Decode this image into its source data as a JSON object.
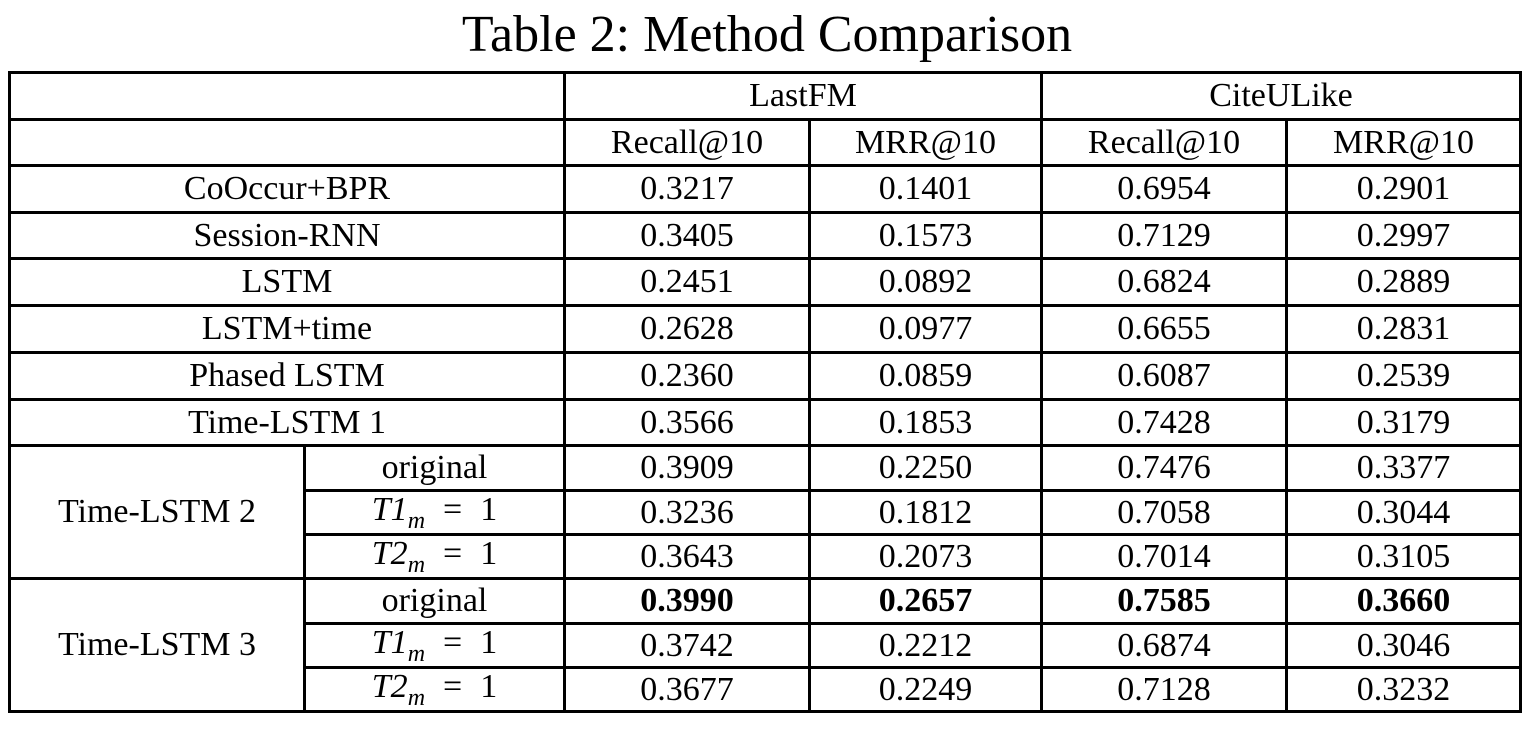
{
  "title": "Table 2: Method Comparison",
  "datasets": [
    "LastFM",
    "CiteULike"
  ],
  "metrics": [
    "Recall@10",
    "MRR@10",
    "Recall@10",
    "MRR@10"
  ],
  "rows": [
    {
      "method": "CoOccur+BPR",
      "values": [
        "0.3217",
        "0.1401",
        "0.6954",
        "0.2901"
      ]
    },
    {
      "method": "Session-RNN",
      "values": [
        "0.3405",
        "0.1573",
        "0.7129",
        "0.2997"
      ]
    },
    {
      "method": "LSTM",
      "values": [
        "0.2451",
        "0.0892",
        "0.6824",
        "0.2889"
      ]
    },
    {
      "method": "LSTM+time",
      "values": [
        "0.2628",
        "0.0977",
        "0.6655",
        "0.2831"
      ]
    },
    {
      "method": "Phased LSTM",
      "values": [
        "0.2360",
        "0.0859",
        "0.6087",
        "0.2539"
      ]
    },
    {
      "method": "Time-LSTM 1",
      "values": [
        "0.3566",
        "0.1853",
        "0.7428",
        "0.3179"
      ]
    }
  ],
  "groups": [
    {
      "method": "Time-LSTM 2",
      "variants": [
        {
          "label": "original",
          "values": [
            "0.3909",
            "0.2250",
            "0.7476",
            "0.3377"
          ]
        },
        {
          "var": "T1",
          "sub": "m",
          "eq": "=",
          "rhs": "1",
          "values": [
            "0.3236",
            "0.1812",
            "0.7058",
            "0.3044"
          ]
        },
        {
          "var": "T2",
          "sub": "m",
          "eq": "=",
          "rhs": "1",
          "values": [
            "0.3643",
            "0.2073",
            "0.7014",
            "0.3105"
          ]
        }
      ]
    },
    {
      "method": "Time-LSTM 3",
      "variants": [
        {
          "label": "original",
          "values": [
            "0.3990",
            "0.2657",
            "0.7585",
            "0.3660"
          ]
        },
        {
          "var": "T1",
          "sub": "m",
          "eq": "=",
          "rhs": "1",
          "values": [
            "0.3742",
            "0.2212",
            "0.6874",
            "0.3046"
          ]
        },
        {
          "var": "T2",
          "sub": "m",
          "eq": "=",
          "rhs": "1",
          "values": [
            "0.3677",
            "0.2249",
            "0.7128",
            "0.3232"
          ]
        }
      ]
    }
  ]
}
